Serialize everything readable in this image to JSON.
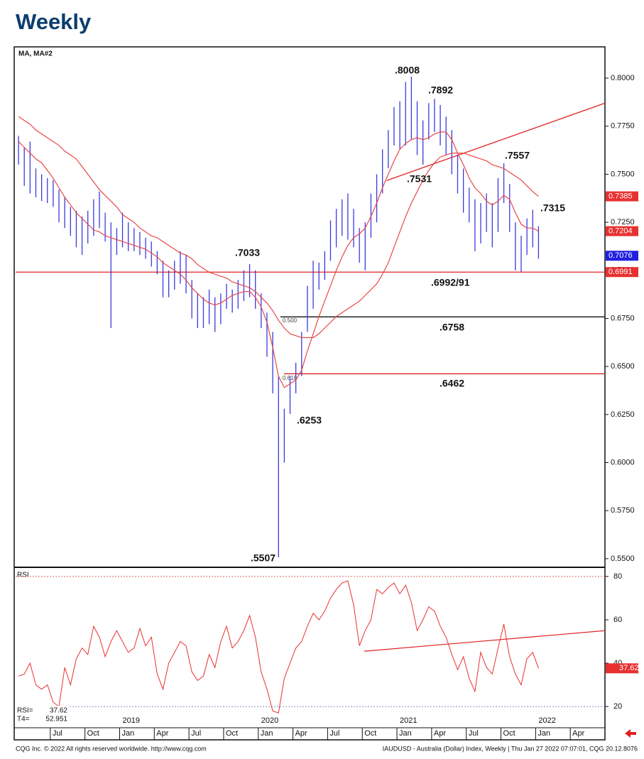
{
  "chart_data": [
    {
      "type": "ohlc",
      "title": "Weekly",
      "legend_text": "MA,  MA#2",
      "color": "#3a3ae0",
      "categories": [
        null,
        null,
        null,
        null,
        null,
        null,
        "Jul",
        null,
        null,
        null,
        null,
        null,
        "Oct",
        null,
        null,
        null,
        null,
        null,
        "Jan",
        null,
        null,
        null,
        null,
        null,
        "Apr",
        null,
        null,
        null,
        null,
        null,
        "Jul",
        null,
        null,
        null,
        null,
        null,
        "Oct",
        null,
        null,
        null,
        null,
        null,
        "Jan",
        null,
        null,
        null,
        null,
        null,
        "Apr",
        null,
        null,
        null,
        null,
        null,
        "Jul",
        null,
        null,
        null,
        null,
        null,
        "Oct",
        null,
        null,
        null,
        null,
        null,
        "Jan",
        null,
        null,
        null,
        null,
        null,
        "Apr",
        null,
        null,
        null,
        null,
        null,
        "Jul",
        null,
        null,
        null,
        null,
        null,
        "Oct",
        null,
        null,
        null,
        null,
        null,
        "Jan",
        null,
        null,
        null,
        null,
        null,
        "Apr",
        null,
        null,
        null,
        null,
        null
      ],
      "year_labels": [
        "2019",
        "2020",
        "2021",
        "2022"
      ],
      "high": [
        0.77,
        0.764,
        0.767,
        0.753,
        0.75,
        0.748,
        0.747,
        0.742,
        0.738,
        0.733,
        0.731,
        0.728,
        0.731,
        0.737,
        0.741,
        0.73,
        0.725,
        0.722,
        0.73,
        0.725,
        0.722,
        0.72,
        0.717,
        0.715,
        0.71,
        0.705,
        0.7,
        0.705,
        0.71,
        0.708,
        0.695,
        0.688,
        0.686,
        0.69,
        0.686,
        0.688,
        0.693,
        0.69,
        0.695,
        0.7,
        0.7033,
        0.7,
        0.688,
        0.678,
        0.668,
        0.645,
        0.628,
        0.645,
        0.652,
        0.668,
        0.692,
        0.705,
        0.704,
        0.71,
        0.726,
        0.732,
        0.737,
        0.74,
        0.732,
        0.722,
        0.725,
        0.74,
        0.75,
        0.763,
        0.773,
        0.785,
        0.788,
        0.798,
        0.8008,
        0.788,
        0.778,
        0.787,
        0.7892,
        0.786,
        0.78,
        0.773,
        0.76,
        0.753,
        0.743,
        0.737,
        0.735,
        0.74,
        0.735,
        0.748,
        0.7557,
        0.745,
        0.725,
        0.718,
        0.727,
        0.7315,
        0.723,
        null,
        null,
        null,
        null,
        null,
        null,
        null,
        null,
        null,
        null,
        null
      ],
      "low": [
        0.755,
        0.744,
        0.74,
        0.738,
        0.736,
        0.735,
        0.733,
        0.725,
        0.722,
        0.718,
        0.712,
        0.708,
        0.714,
        0.718,
        0.722,
        0.715,
        0.67,
        0.708,
        0.712,
        0.71,
        0.71,
        0.708,
        0.706,
        0.702,
        0.698,
        0.686,
        0.686,
        0.69,
        0.693,
        0.688,
        0.675,
        0.67,
        0.67,
        0.672,
        0.668,
        0.672,
        0.68,
        0.678,
        0.68,
        0.684,
        0.686,
        0.68,
        0.67,
        0.655,
        0.636,
        0.5507,
        0.6,
        0.6253,
        0.636,
        0.645,
        0.668,
        0.68,
        0.69,
        0.695,
        0.705,
        0.712,
        0.718,
        0.716,
        0.712,
        0.704,
        0.7,
        0.717,
        0.725,
        0.74,
        0.7531,
        0.765,
        0.763,
        0.765,
        0.768,
        0.76,
        0.755,
        0.768,
        0.772,
        0.765,
        0.76,
        0.75,
        0.74,
        0.73,
        0.725,
        0.71,
        0.714,
        0.72,
        0.712,
        0.72,
        0.735,
        0.72,
        0.7,
        0.6992,
        0.708,
        0.712,
        0.706,
        null,
        null,
        null,
        null,
        null,
        null,
        null,
        null,
        null,
        null,
        null
      ],
      "series": [
        {
          "name": "MA",
          "color": "#e84848",
          "values": [
            0.767,
            0.764,
            0.761,
            0.758,
            0.756,
            0.752,
            0.748,
            0.743,
            0.738,
            0.734,
            0.73,
            0.727,
            0.724,
            0.721,
            0.72,
            0.718,
            0.717,
            0.716,
            0.715,
            0.714,
            0.713,
            0.712,
            0.711,
            0.709,
            0.707,
            0.704,
            0.702,
            0.7,
            0.698,
            0.695,
            0.691,
            0.688,
            0.685,
            0.683,
            0.682,
            0.683,
            0.685,
            0.687,
            0.688,
            0.689,
            0.689,
            0.686,
            0.681,
            0.673,
            0.66,
            0.645,
            0.639,
            0.641,
            0.643,
            0.648,
            0.658,
            0.667,
            0.676,
            0.684,
            0.692,
            0.7,
            0.707,
            0.713,
            0.717,
            0.719,
            0.722,
            0.728,
            0.735,
            0.743,
            0.75,
            0.757,
            0.763,
            0.766,
            0.768,
            0.769,
            0.768,
            0.769,
            0.771,
            0.772,
            0.772,
            0.768,
            0.761,
            0.755,
            0.748,
            0.743,
            0.74,
            0.736,
            0.734,
            0.736,
            0.739,
            0.737,
            0.73,
            0.724,
            0.722,
            0.722,
            0.7204,
            null,
            null,
            null,
            null,
            null,
            null,
            null,
            null,
            null,
            null,
            null
          ]
        },
        {
          "name": "MA#2",
          "color": "#e84848",
          "values": [
            0.78,
            0.778,
            0.776,
            0.773,
            0.771,
            0.769,
            0.767,
            0.765,
            0.762,
            0.76,
            0.758,
            0.754,
            0.75,
            0.746,
            0.742,
            0.739,
            0.736,
            0.733,
            0.729,
            0.727,
            0.725,
            0.722,
            0.72,
            0.718,
            0.717,
            0.715,
            0.713,
            0.711,
            0.709,
            0.708,
            0.706,
            0.703,
            0.701,
            0.699,
            0.698,
            0.697,
            0.696,
            0.694,
            0.693,
            0.692,
            0.691,
            0.689,
            0.686,
            0.683,
            0.679,
            0.674,
            0.67,
            0.667,
            0.666,
            0.665,
            0.665,
            0.665,
            0.667,
            0.67,
            0.673,
            0.676,
            0.678,
            0.68,
            0.682,
            0.684,
            0.687,
            0.69,
            0.693,
            0.698,
            0.704,
            0.712,
            0.72,
            0.728,
            0.735,
            0.741,
            0.747,
            0.752,
            0.756,
            0.759,
            0.76,
            0.761,
            0.761,
            0.761,
            0.76,
            0.759,
            0.758,
            0.757,
            0.755,
            0.754,
            0.753,
            0.751,
            0.749,
            0.747,
            0.744,
            0.741,
            0.7385,
            null,
            null,
            null,
            null,
            null,
            null,
            null,
            null,
            null,
            null,
            null
          ]
        }
      ],
      "ylim": [
        0.5459,
        0.8159
      ],
      "yticks": [
        {
          "value": 0.55,
          "label": "0.5500"
        },
        {
          "value": 0.575,
          "label": "0.5750"
        },
        {
          "value": 0.6,
          "label": "0.6000"
        },
        {
          "value": 0.625,
          "label": "0.6250"
        },
        {
          "value": 0.65,
          "label": "0.6500"
        },
        {
          "value": 0.675,
          "label": "0.6750"
        },
        {
          "value": 0.7,
          "label": "0.7000"
        },
        {
          "value": 0.725,
          "label": "0.7250"
        },
        {
          "value": 0.75,
          "label": "0.7500"
        },
        {
          "value": 0.775,
          "label": "0.7750"
        },
        {
          "value": 0.8,
          "label": "0.8000"
        }
      ],
      "levels": [
        {
          "value": 0.6991,
          "color": "#e02020"
        },
        {
          "value": 0.6758,
          "color": "#111111"
        },
        {
          "value": 0.6462,
          "color": "#e02020"
        }
      ],
      "trendline": {
        "values": [
          0.7468,
          0.787
        ],
        "color": "#e02020"
      },
      "flags": [
        {
          "value": 0.7385,
          "color": "#e83030"
        },
        {
          "value": 0.7204,
          "color": "#e83030"
        },
        {
          "value": 0.7076,
          "color": "#2020e0"
        },
        {
          "value": 0.6991,
          "color": "#e83030"
        }
      ],
      "fib_labels": [
        "0.500",
        "0.618"
      ],
      "annotations": [
        ".8008",
        ".7892",
        ".7557",
        ".7531",
        ".7315",
        ".7033",
        ".6992/91",
        ".6758",
        ".6462",
        ".6253",
        ".5507"
      ]
    },
    {
      "type": "line",
      "title": "RSI",
      "series": [
        {
          "name": "RSI",
          "color": "#e83030",
          "values": [
            34,
            35,
            40,
            30,
            28,
            30,
            22,
            20,
            38,
            30,
            42,
            47,
            44,
            57,
            52,
            43,
            50,
            55,
            50,
            45,
            47,
            56,
            48,
            52,
            35,
            28,
            40,
            45,
            50,
            48,
            36,
            32,
            34,
            44,
            38,
            50,
            57,
            47,
            50,
            55,
            62,
            52,
            36,
            28,
            18,
            17,
            33,
            40,
            47,
            50,
            57,
            63,
            60,
            64,
            70,
            74,
            77,
            78,
            67,
            48,
            55,
            60,
            74,
            72,
            75,
            77,
            72,
            76,
            68,
            55,
            60,
            66,
            64,
            57,
            52,
            44,
            37,
            43,
            33,
            27,
            45,
            38,
            35,
            47,
            58,
            43,
            35,
            30,
            42,
            45,
            37.62,
            null,
            null,
            null,
            null,
            null,
            null,
            null,
            null,
            null,
            null,
            null
          ]
        }
      ],
      "ylim": [
        10.2,
        83.9
      ],
      "yticks": [
        20,
        40,
        60,
        80
      ],
      "ref_lines": [
        80,
        20
      ],
      "trendline": {
        "values": [
          45.5,
          55
        ],
        "color": "#e02020"
      },
      "flag": {
        "value": 37.62,
        "color": "#e83030"
      },
      "readouts": [
        {
          "label": "RSI=",
          "value": 37.62
        },
        {
          "label": "T4=",
          "value": 52.951
        }
      ]
    }
  ],
  "footer": {
    "left": "CQG Inc. © 2022 All rights reserved worldwide. http://www.cqg.com",
    "right": "IAUDUSD - Australia (Dollar) Index, Weekly | Thu Jan 27 2022 07:07:01, CQG 20.12.8076"
  }
}
